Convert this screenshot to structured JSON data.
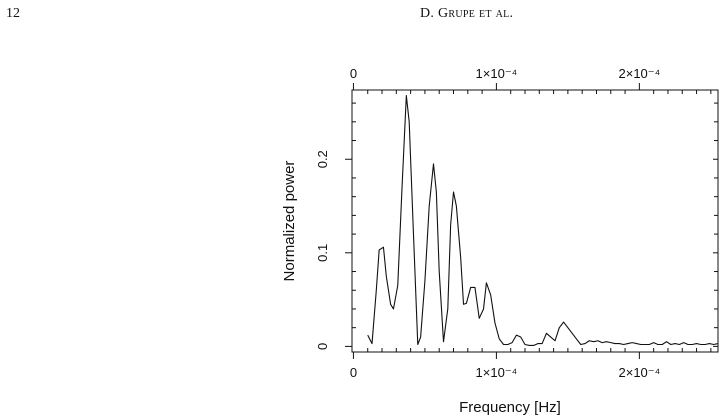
{
  "page": {
    "number": "12",
    "running_head": "D. Grupe et al."
  },
  "chart_data": {
    "type": "line",
    "title": "",
    "xlabel": "Frequency [Hz]",
    "ylabel": "Normalized power",
    "xlim": [
      -1e-06,
      0.000255
    ],
    "ylim": [
      -0.006,
      0.274
    ],
    "grid": false,
    "x_ticks": [
      0,
      0.0001,
      0.0002
    ],
    "x_tick_labels": [
      "0",
      "1×10⁻⁴",
      "2×10⁻⁴"
    ],
    "x_minor_ticks": [
      1e-05,
      2e-05,
      3e-05,
      4e-05,
      5e-05,
      6e-05,
      7e-05,
      8e-05,
      9e-05,
      0.00011,
      0.00012,
      0.00013,
      0.00014,
      0.00015,
      0.00016,
      0.00017,
      0.00018,
      0.00019,
      0.00021,
      0.00022,
      0.00023,
      0.00024,
      0.00025
    ],
    "y_ticks": [
      0,
      0.1,
      0.2
    ],
    "y_tick_labels": [
      "0",
      "0.1",
      "0.2"
    ],
    "y_minor_ticks": [
      0.02,
      0.04,
      0.06,
      0.08,
      0.12,
      0.14,
      0.16,
      0.18,
      0.22,
      0.24,
      0.26
    ],
    "series": [
      {
        "x": [
          1e-05,
          1.3e-05,
          1.6e-05,
          1.8e-05,
          2.1e-05,
          2.3e-05,
          2.6e-05,
          2.8e-05,
          3.1e-05,
          3.4e-05,
          3.7e-05,
          3.9e-05,
          4.2e-05,
          4.5e-05,
          4.7e-05,
          5e-05,
          5.3e-05,
          5.6e-05,
          5.8e-05,
          6e-05,
          6.3e-05,
          6.6e-05,
          6.8e-05,
          7e-05,
          7.2e-05,
          7.5e-05,
          7.7e-05,
          7.9e-05,
          8.2e-05,
          8.5e-05,
          8.8e-05,
          9.1e-05,
          9.3e-05,
          9.6e-05,
          9.9e-05,
          0.000102,
          0.000105,
          0.000108,
          0.000111,
          0.000114,
          0.000117,
          0.00012,
          0.000123,
          0.000126,
          0.000129,
          0.000132,
          0.000135,
          0.000138,
          0.000141,
          0.000144,
          0.000147,
          0.00015,
          0.000153,
          0.000156,
          0.000159,
          0.000162,
          0.000165,
          0.000168,
          0.000171,
          0.000174,
          0.000177,
          0.00018,
          0.000183,
          0.000186,
          0.000189,
          0.000192,
          0.000195,
          0.000198,
          0.000201,
          0.000204,
          0.000207,
          0.00021,
          0.000213,
          0.000216,
          0.000219,
          0.000222,
          0.000225,
          0.000228,
          0.000231,
          0.000234,
          0.000237,
          0.00024,
          0.000243,
          0.000246,
          0.000249,
          0.000252,
          0.000255
        ],
        "y": [
          0.012,
          0.003,
          0.06,
          0.103,
          0.106,
          0.075,
          0.045,
          0.04,
          0.065,
          0.17,
          0.268,
          0.24,
          0.12,
          0.002,
          0.01,
          0.07,
          0.15,
          0.195,
          0.165,
          0.08,
          0.005,
          0.04,
          0.13,
          0.165,
          0.15,
          0.095,
          0.045,
          0.046,
          0.063,
          0.063,
          0.03,
          0.04,
          0.068,
          0.055,
          0.025,
          0.008,
          0.002,
          0.002,
          0.004,
          0.012,
          0.01,
          0.002,
          0.001,
          0.001,
          0.003,
          0.003,
          0.014,
          0.01,
          0.006,
          0.02,
          0.026,
          0.02,
          0.014,
          0.008,
          0.002,
          0.003,
          0.006,
          0.005,
          0.006,
          0.004,
          0.005,
          0.004,
          0.003,
          0.003,
          0.002,
          0.003,
          0.004,
          0.003,
          0.002,
          0.002,
          0.002,
          0.004,
          0.002,
          0.002,
          0.005,
          0.002,
          0.003,
          0.002,
          0.004,
          0.002,
          0.002,
          0.003,
          0.002,
          0.002,
          0.003,
          0.002,
          0.003
        ]
      }
    ]
  }
}
